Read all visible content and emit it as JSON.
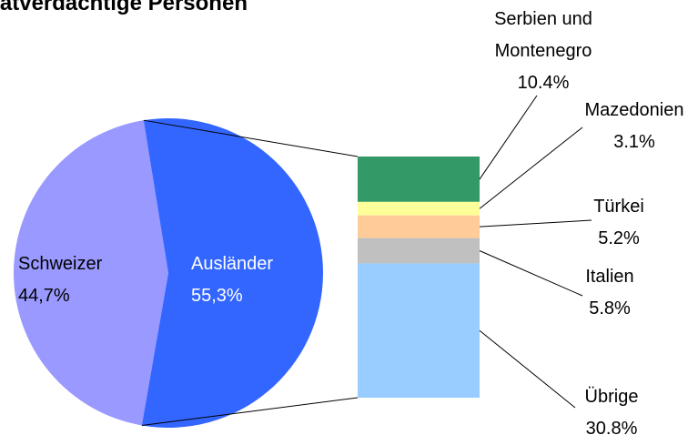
{
  "chart_data": {
    "type": "pie-of-bar",
    "title": "Tatverdächtige Personen",
    "pie": {
      "categories": [
        "Schweizer",
        "Ausländer"
      ],
      "values": [
        44.7,
        55.3
      ],
      "value_labels": [
        "44,7%",
        "55,3%"
      ],
      "colors": [
        "#9999ff",
        "#3366ff"
      ]
    },
    "bar": {
      "categories": [
        "Serbien und Montenegro",
        "Mazedonien",
        "Türkei",
        "Italien",
        "Übrige"
      ],
      "values": [
        10.4,
        3.1,
        5.2,
        5.8,
        30.8
      ],
      "value_labels": [
        "10.4%",
        "3.1%",
        "5.2%",
        "5.8%",
        "30.8%"
      ],
      "colors": [
        "#339966",
        "#ffff99",
        "#ffcc99",
        "#c0c0c0",
        "#99ccff"
      ]
    }
  }
}
